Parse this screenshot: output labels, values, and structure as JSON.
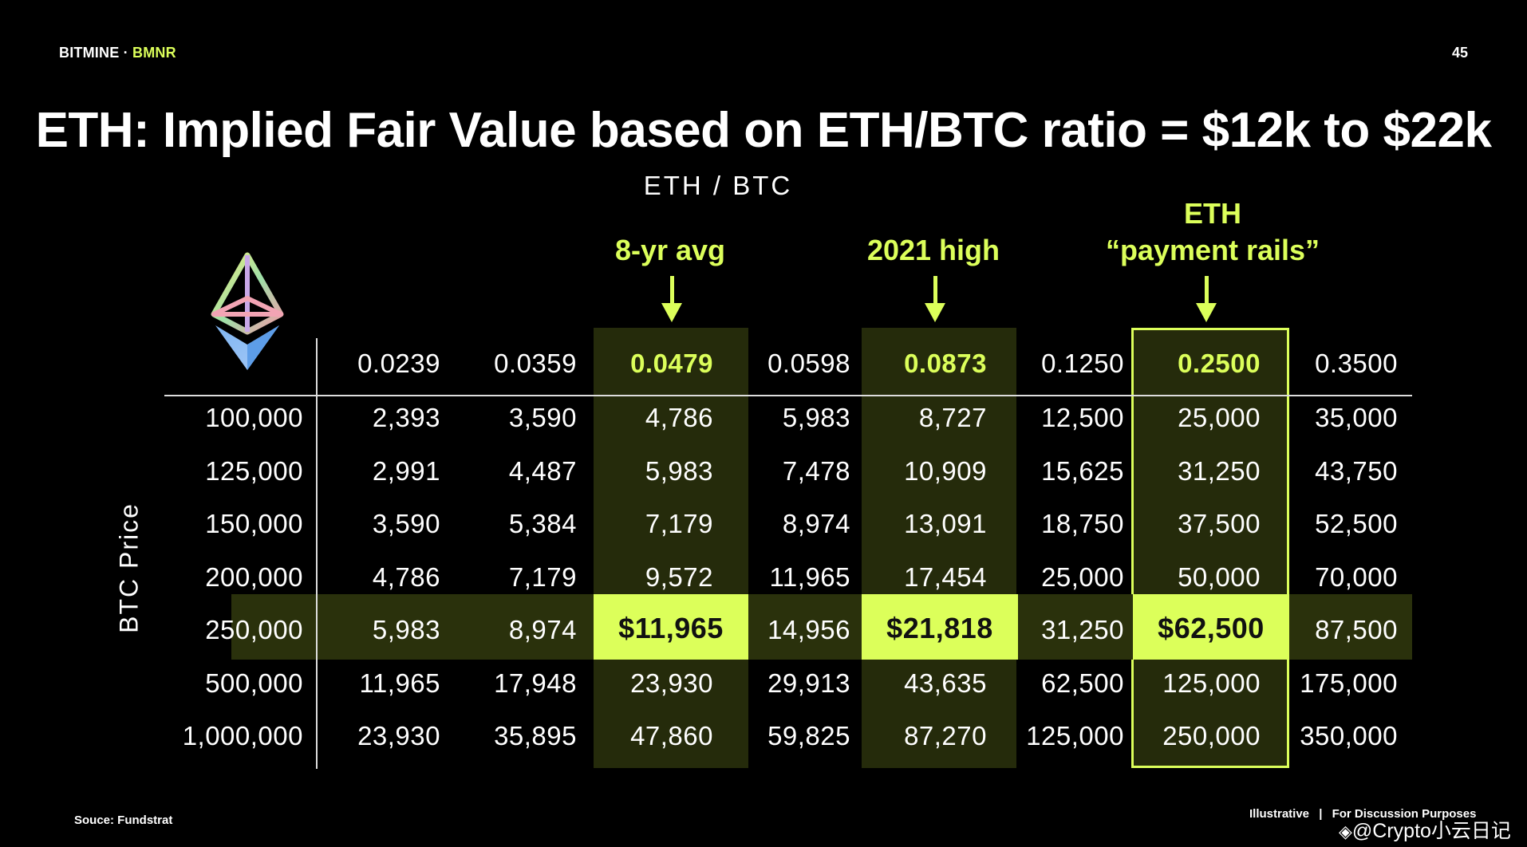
{
  "header": {
    "brand": "BITMINE",
    "separator": " · ",
    "ticker": "BMNR",
    "page_number": "45"
  },
  "title": "ETH: Implied Fair Value based on ETH/BTC ratio = $12k to $22k",
  "column_axis_label": "ETH / BTC",
  "row_axis_label": "BTC Price",
  "annotations": {
    "avg": "8-yr avg",
    "high": "2021 high",
    "rails_line1": "ETH",
    "rails_line2": "“payment rails”"
  },
  "table": {
    "columns": [
      "0.0239",
      "0.0359",
      "0.0479",
      "0.0598",
      "0.0873",
      "0.1250",
      "0.2500",
      "0.3500"
    ],
    "rows": [
      {
        "btc": "100,000",
        "values": [
          "2,393",
          "3,590",
          "4,786",
          "5,983",
          "8,727",
          "12,500",
          "25,000",
          "35,000"
        ]
      },
      {
        "btc": "125,000",
        "values": [
          "2,991",
          "4,487",
          "5,983",
          "7,478",
          "10,909",
          "15,625",
          "31,250",
          "43,750"
        ]
      },
      {
        "btc": "150,000",
        "values": [
          "3,590",
          "5,384",
          "7,179",
          "8,974",
          "13,091",
          "18,750",
          "37,500",
          "52,500"
        ]
      },
      {
        "btc": "200,000",
        "values": [
          "4,786",
          "7,179",
          "9,572",
          "11,965",
          "17,454",
          "25,000",
          "50,000",
          "70,000"
        ]
      },
      {
        "btc": "250,000",
        "values": [
          "5,983",
          "8,974",
          "$11,965",
          "14,956",
          "$21,818",
          "31,250",
          "$62,500",
          "87,500"
        ]
      },
      {
        "btc": "500,000",
        "values": [
          "11,965",
          "17,948",
          "23,930",
          "29,913",
          "43,635",
          "62,500",
          "125,000",
          "175,000"
        ]
      },
      {
        "btc": "1,000,000",
        "values": [
          "23,930",
          "35,895",
          "47,860",
          "59,825",
          "87,270",
          "125,000",
          "250,000",
          "350,000"
        ]
      }
    ]
  },
  "footer": {
    "source": "Souce: Fundstrat",
    "illustrative": "Illustrative",
    "divider": "|",
    "discussion": "For Discussion Purposes",
    "watermark": "@Crypto小云日记"
  },
  "colors": {
    "accent": "#dcff5a",
    "highlight_column_bg": "#252b0b",
    "background": "#000000"
  },
  "icons": {
    "logo": "ethereum-logo-icon",
    "watermark": "binance-logo-icon"
  }
}
